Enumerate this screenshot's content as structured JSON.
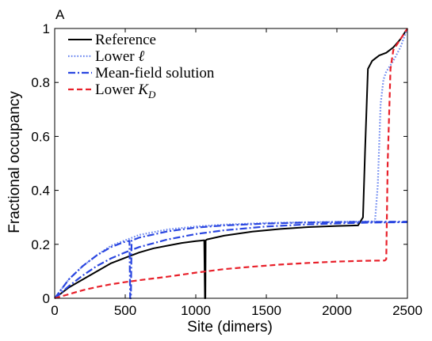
{
  "chart_data": {
    "type": "line",
    "panel_label": "A",
    "xlabel": "Site (dimers)",
    "ylabel": "Fractional occupancy",
    "xlim": [
      0,
      2500
    ],
    "ylim": [
      0,
      1
    ],
    "x_ticks": [
      0,
      500,
      1000,
      1500,
      2000,
      2500
    ],
    "y_ticks": [
      0,
      0.2,
      0.4,
      0.6,
      0.8,
      1
    ],
    "x_tick_labels": [
      "0",
      "500",
      "1000",
      "1500",
      "2000",
      "2500"
    ],
    "y_tick_labels": [
      "0",
      "0.2",
      "0.4",
      "0.6",
      "0.8",
      "1"
    ],
    "grid": false,
    "legend_position": "top-left",
    "series": [
      {
        "name": "Reference",
        "legend_text": "Reference",
        "color": "#000000",
        "style": "solid",
        "x": [
          0,
          100,
          200,
          300,
          400,
          500,
          600,
          700,
          800,
          900,
          1000,
          1060,
          1065,
          1068,
          1070,
          1080,
          1200,
          1400,
          1600,
          1800,
          2000,
          2150,
          2185,
          2200,
          2220,
          2250,
          2300,
          2350,
          2400,
          2450,
          2500
        ],
        "y": [
          0.0,
          0.04,
          0.07,
          0.1,
          0.13,
          0.15,
          0.17,
          0.185,
          0.195,
          0.205,
          0.212,
          0.215,
          0.0,
          0.0,
          0.215,
          0.218,
          0.232,
          0.247,
          0.257,
          0.264,
          0.268,
          0.27,
          0.3,
          0.55,
          0.85,
          0.88,
          0.9,
          0.91,
          0.93,
          0.96,
          1.0
        ]
      },
      {
        "name": "Lower l",
        "legend_text": "Lower ",
        "legend_math": "ℓ",
        "color": "#6a86f0",
        "style": "dotted",
        "x": [
          0,
          100,
          200,
          300,
          400,
          500,
          600,
          800,
          1000,
          1200,
          1500,
          1800,
          2100,
          2270,
          2290,
          2310,
          2330,
          2350,
          2400,
          2450,
          2500
        ],
        "y": [
          0.0,
          0.07,
          0.12,
          0.16,
          0.195,
          0.215,
          0.235,
          0.255,
          0.266,
          0.273,
          0.279,
          0.282,
          0.284,
          0.285,
          0.42,
          0.72,
          0.81,
          0.84,
          0.88,
          0.93,
          1.0
        ]
      },
      {
        "name": "Mean-field solution",
        "legend_text": "Mean-field solution",
        "color": "#2a46e0",
        "style": "dashdot",
        "x": [
          0,
          100,
          200,
          300,
          400,
          500,
          600,
          800,
          1000,
          1200,
          1500,
          1800,
          2100,
          2300,
          2500
        ],
        "y": [
          0.0,
          0.045,
          0.085,
          0.12,
          0.148,
          0.17,
          0.19,
          0.218,
          0.238,
          0.252,
          0.266,
          0.274,
          0.279,
          0.281,
          0.282
        ]
      },
      {
        "name": "Mean-field solution (lower l)",
        "legend_text": "",
        "color": "#2a46e0",
        "style": "dashdot",
        "x": [
          0,
          100,
          200,
          300,
          400,
          500,
          530,
          535,
          540,
          545,
          600,
          800,
          1000,
          1200,
          1500,
          1800,
          2100,
          2500
        ],
        "y": [
          0.0,
          0.07,
          0.12,
          0.16,
          0.19,
          0.21,
          0.213,
          0.0,
          0.0,
          0.214,
          0.225,
          0.248,
          0.262,
          0.27,
          0.277,
          0.281,
          0.283,
          0.284
        ]
      },
      {
        "name": "Lower K_D",
        "legend_text": "Lower ",
        "legend_math": "K",
        "legend_math_sub": "D",
        "color": "#e8202a",
        "style": "dashed",
        "x": [
          0,
          100,
          200,
          300,
          400,
          500,
          600,
          800,
          1000,
          1200,
          1400,
          1600,
          1800,
          2000,
          2200,
          2340,
          2350,
          2360,
          2380,
          2400,
          2450,
          2500
        ],
        "y": [
          0.0,
          0.015,
          0.03,
          0.042,
          0.052,
          0.06,
          0.067,
          0.08,
          0.095,
          0.108,
          0.117,
          0.125,
          0.131,
          0.136,
          0.139,
          0.14,
          0.145,
          0.5,
          0.85,
          0.92,
          0.96,
          1.0
        ]
      }
    ]
  }
}
